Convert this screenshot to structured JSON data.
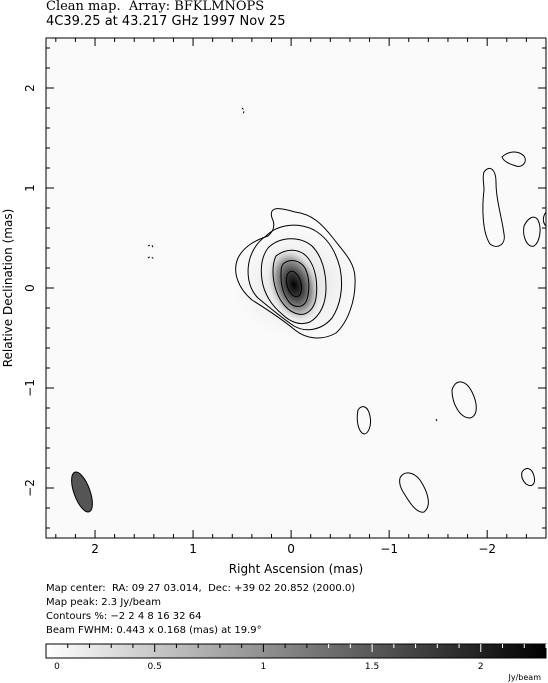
{
  "header": {
    "line1": "Clean map.  Array: BFKLMNOPS",
    "line2": "4C39.25 at 43.217 GHz 1997 Nov 25"
  },
  "chart_data": {
    "type": "heatmap",
    "xlabel": "Right Ascension  (mas)",
    "ylabel": "Relative Declination  (mas)",
    "xlim": [
      2.5,
      -2.6
    ],
    "ylim": [
      -2.5,
      2.5
    ],
    "x_ticks": [
      2,
      1,
      0,
      -1,
      -2
    ],
    "x_tick_labels": [
      "2",
      "1",
      "0",
      "−1",
      "−2"
    ],
    "y_ticks": [
      2,
      1,
      0,
      -1,
      -2
    ],
    "y_tick_labels": [
      "2",
      "1",
      "0",
      "−1",
      "−2"
    ],
    "map_center": "RA: 09 27 03.014,  Dec: +39 02 20.852 (2000.0)",
    "map_peak_jy_per_beam": 2.3,
    "contour_levels_percent": [
      -2,
      2,
      4,
      8,
      16,
      32,
      64
    ],
    "beam": {
      "major_mas": 0.443,
      "minor_mas": 0.168,
      "pa_deg": 19.9,
      "center": [
        2.15,
        -2.08
      ]
    },
    "source_core": {
      "x": 0.0,
      "y": 0.0,
      "peak": 2.3
    },
    "colorbar": {
      "min": 0,
      "max": 2.3,
      "ticks": [
        0,
        0.5,
        1,
        1.5,
        2
      ],
      "tick_labels": [
        "0",
        "0.5",
        "1",
        "1.5",
        "2"
      ],
      "unit": "Jy/beam"
    }
  },
  "info": {
    "center_line": "Map center:  RA: 09 27 03.014,  Dec: +39 02 20.852 (2000.0)",
    "peak_line": "Map peak: 2.3 Jy/beam",
    "contours_line": "Contours %: −2 2 4 8 16 32 64",
    "beam_line": "Beam FWHM: 0.443 x 0.168 (mas) at 19.9°"
  }
}
